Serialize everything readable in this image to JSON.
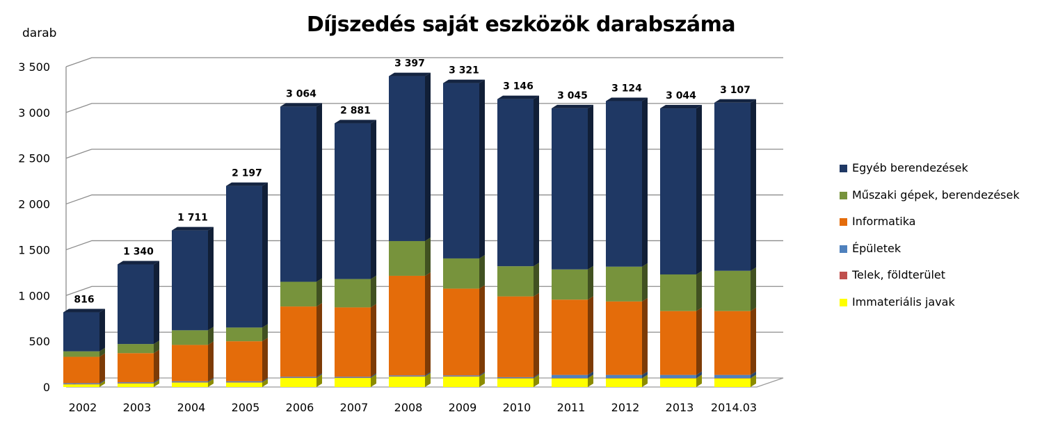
{
  "chart_data": {
    "type": "bar",
    "stacked": true,
    "style": "3d-column",
    "title": "Díjszedés saját eszközök darabszáma",
    "ylabel": "darab",
    "xlabel": "",
    "ylim": [
      0,
      3500
    ],
    "yticks": [
      0,
      500,
      1000,
      1500,
      2000,
      2500,
      3000,
      3500
    ],
    "ytick_labels": [
      "0",
      "500",
      "1 000",
      "1 500",
      "2 000",
      "2 500",
      "3 000",
      "3 500"
    ],
    "grid": true,
    "legend_position": "right",
    "categories": [
      "2002",
      "2003",
      "2004",
      "2005",
      "2006",
      "2007",
      "2008",
      "2009",
      "2010",
      "2011",
      "2012",
      "2013",
      "2014.03"
    ],
    "series": [
      {
        "name": "Immateriális javak",
        "color": "#FFFF00",
        "values": [
          30,
          40,
          50,
          50,
          100,
          100,
          115,
          115,
          95,
          95,
          95,
          95,
          95
        ]
      },
      {
        "name": "Telek, földterület",
        "color": "#C0504D",
        "values": [
          2,
          2,
          2,
          2,
          2,
          2,
          2,
          2,
          2,
          2,
          2,
          2,
          2
        ]
      },
      {
        "name": "Épületek",
        "color": "#4F81BD",
        "values": [
          10,
          10,
          10,
          10,
          10,
          10,
          10,
          10,
          10,
          35,
          35,
          35,
          35
        ]
      },
      {
        "name": "Informatika",
        "color": "#E46C0A",
        "values": [
          288,
          318,
          398,
          438,
          768,
          758,
          1088,
          948,
          883,
          823,
          803,
          698,
          698
        ]
      },
      {
        "name": "Műszaki gépek, berendezések",
        "color": "#77933C",
        "values": [
          60,
          100,
          160,
          150,
          270,
          310,
          380,
          330,
          330,
          330,
          380,
          400,
          440
        ]
      },
      {
        "name": "Egyéb berendezések",
        "color": "#1F3864",
        "values": [
          426,
          870,
          1091,
          1547,
          1914,
          1701,
          1802,
          1916,
          1826,
          1760,
          1809,
          1814,
          1837
        ]
      }
    ],
    "legend_order": [
      "Egyéb berendezések",
      "Műszaki gépek, berendezések",
      "Informatika",
      "Épületek",
      "Telek, földterület",
      "Immateriális javak"
    ],
    "totals": [
      816,
      1340,
      1711,
      2197,
      3064,
      2881,
      3397,
      3321,
      3146,
      3045,
      3124,
      3044,
      3107
    ],
    "total_labels": [
      "816",
      "1 340",
      "1 711",
      "2 197",
      "3 064",
      "2 881",
      "3 397",
      "3 321",
      "3 146",
      "3 045",
      "3 124",
      "3 044",
      "3 107"
    ]
  }
}
